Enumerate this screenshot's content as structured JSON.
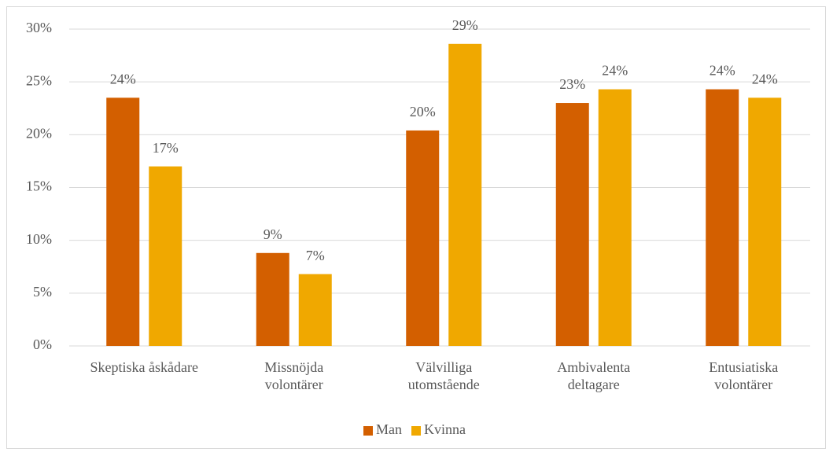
{
  "chart_data": {
    "type": "bar",
    "categories": [
      "Skeptiska åskådare",
      "Missnöjda\nvolontärer",
      "Välvilliga\nutomstående",
      "Ambivalenta\ndeltagare",
      "Entusiatiska\nvolontärer"
    ],
    "series": [
      {
        "name": "Man",
        "color": "#d35f00",
        "values": [
          23.5,
          8.8,
          20.4,
          23.0,
          24.3
        ],
        "value_labels": [
          "24%",
          "9%",
          "20%",
          "23%",
          "24%"
        ]
      },
      {
        "name": "Kvinna",
        "color": "#f0a800",
        "values": [
          17.0,
          6.8,
          28.6,
          24.3,
          23.5
        ],
        "value_labels": [
          "17%",
          "7%",
          "29%",
          "24%",
          "24%"
        ]
      }
    ],
    "ylim": [
      0,
      30
    ],
    "yticks": [
      {
        "value": 0,
        "label": "0%"
      },
      {
        "value": 5,
        "label": "5%"
      },
      {
        "value": 10,
        "label": "10%"
      },
      {
        "value": 15,
        "label": "15%"
      },
      {
        "value": 20,
        "label": "20%"
      },
      {
        "value": 25,
        "label": "25%"
      },
      {
        "value": 30,
        "label": "30%"
      }
    ],
    "grid": true,
    "legend": "bottom"
  }
}
